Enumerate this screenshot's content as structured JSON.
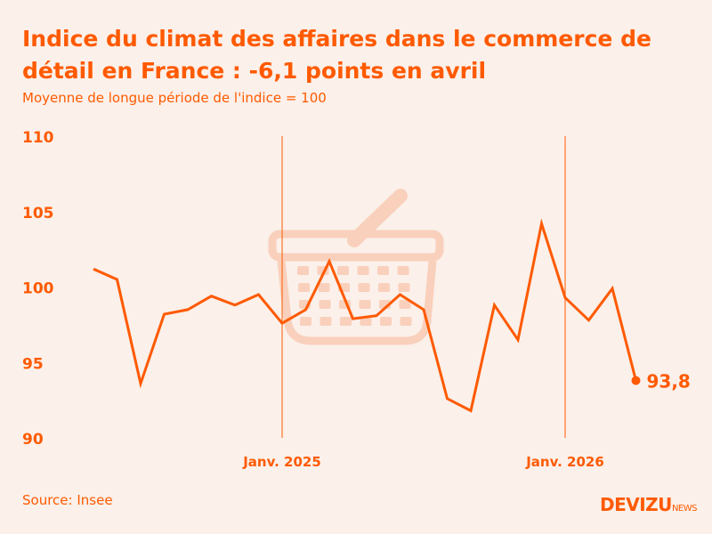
{
  "title": "Indice du climat des affaires dans le commerce de détail en France : -6,1 points en avril",
  "subtitle": "Moyenne de longue période de l'indice = 100",
  "source": "Source: Insee",
  "logo": {
    "main": "DEVIZU",
    "suffix": "NEWS"
  },
  "colors": {
    "accent": "#FF5A00",
    "background": "#FBF0EA",
    "icon": "#F9D0BC"
  },
  "icon": "shopping-basket-icon",
  "chart_data": {
    "type": "line",
    "title": "Indice du climat des affaires dans le commerce de détail en France : -6,1 points en avril",
    "subtitle": "Moyenne de longue période de l'indice = 100",
    "x": [
      "2024-05",
      "2024-06",
      "2024-07",
      "2024-08",
      "2024-09",
      "2024-10",
      "2024-11",
      "2024-12",
      "2025-01",
      "2025-02",
      "2025-03",
      "2025-04",
      "2025-05",
      "2025-06",
      "2025-07",
      "2025-08",
      "2025-09",
      "2025-10",
      "2025-11",
      "2025-12",
      "2026-01",
      "2026-02",
      "2026-03",
      "2026-04"
    ],
    "values": [
      101.2,
      100.5,
      93.6,
      98.2,
      98.5,
      99.4,
      98.8,
      99.5,
      97.6,
      98.5,
      101.7,
      97.9,
      98.1,
      99.5,
      98.5,
      92.6,
      91.8,
      98.8,
      96.5,
      104.2,
      99.3,
      97.8,
      99.9,
      93.8
    ],
    "ylim": [
      90,
      110
    ],
    "yticks": [
      "90",
      "95",
      "100",
      "105",
      "110"
    ],
    "xticks": [
      {
        "x": "2025-01",
        "label": "Janv. 2025"
      },
      {
        "x": "2026-01",
        "label": "Janv. 2026"
      }
    ],
    "last_label": "93,8",
    "grid": "vertical lines at January",
    "legend": "none"
  }
}
